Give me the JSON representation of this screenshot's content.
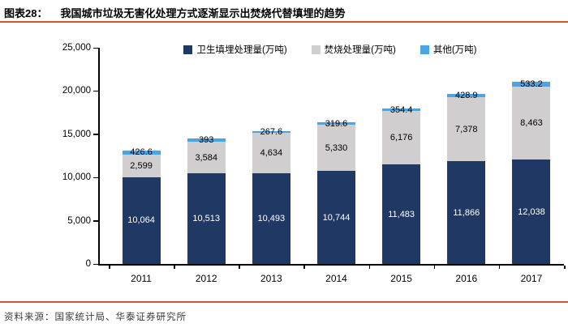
{
  "header": {
    "figure_label": "图表28：",
    "title": "我国城市垃圾无害化处理方式逐渐显示出焚烧代替填埋的趋势"
  },
  "footer": {
    "source": "资料来源：国家统计局、华泰证券研究所"
  },
  "colors": {
    "accent_rule": "#D6532F",
    "axis": "#000000"
  },
  "chart_data": {
    "type": "bar",
    "stacked": true,
    "title": "我国城市垃圾无害化处理方式逐渐显示出焚烧代替填埋的趋势",
    "xlabel": "",
    "ylabel": "",
    "grid": false,
    "legend_position": "top",
    "categories": [
      "2011",
      "2012",
      "2013",
      "2014",
      "2015",
      "2016",
      "2017"
    ],
    "series": [
      {
        "key": "landfill",
        "name": "卫生填埋处理量(万吨)",
        "color": "#1F3864",
        "label_color": "#FFFFFF",
        "values": [
          10064,
          10513,
          10493,
          10744,
          11483,
          11866,
          12038
        ],
        "labels": [
          "10,064",
          "10,513",
          "10,493",
          "10,744",
          "11,483",
          "11,866",
          "12,038"
        ]
      },
      {
        "key": "incineration",
        "name": "焚烧处理量(万吨)",
        "color": "#D0CECE",
        "label_color": "#000000",
        "values": [
          2599,
          3584,
          4634,
          5330,
          6176,
          7378,
          8463
        ],
        "labels": [
          "2,599",
          "3,584",
          "4,634",
          "5,330",
          "6,176",
          "7,378",
          "8,463"
        ]
      },
      {
        "key": "other",
        "name": "其他(万吨)",
        "color": "#4BA4E4",
        "label_color": "#000000",
        "values": [
          426.6,
          393,
          267.6,
          319.6,
          354.4,
          428.9,
          533.2
        ],
        "labels": [
          "426.6",
          "393",
          "267.6",
          "319.6",
          "354.4",
          "428.9",
          "533.2"
        ]
      }
    ],
    "y_axis": {
      "min": 0,
      "max": 25000,
      "tick_interval": 5000,
      "tick_labels": [
        "0",
        "5,000",
        "10,000",
        "15,000",
        "20,000",
        "25,000"
      ]
    },
    "ylim": [
      0,
      25000
    ]
  }
}
